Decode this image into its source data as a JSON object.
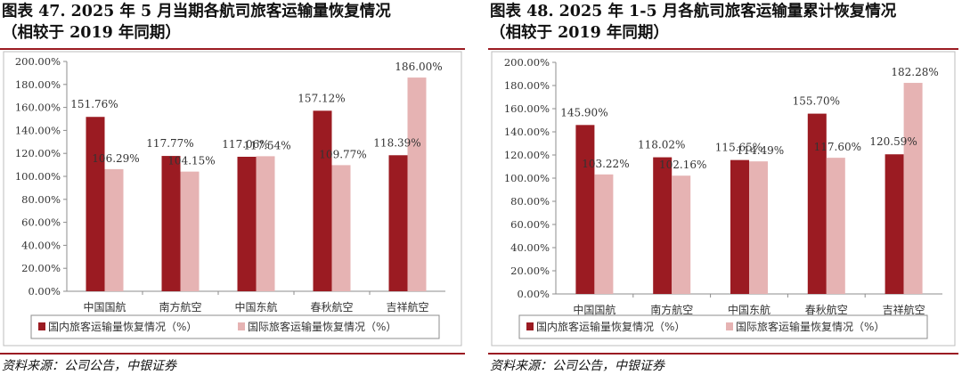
{
  "figures": [
    {
      "title_line1": "图表 47.   2025 年 5 月当期各航司旅客运输量恢复情况",
      "title_line2": "（相较于 2019 年同期）",
      "source": "资料来源：公司公告，中银证券"
    },
    {
      "title_line1": "图表 48.   2025 年 1-5 月各航司旅客运输量累计恢复情况",
      "title_line2": "（相较于 2019 年同期）",
      "source": "资料来源：公司公告，中银证券"
    }
  ],
  "chart_data": [
    {
      "type": "bar",
      "categories": [
        "中国国航",
        "南方航空",
        "中国东航",
        "春秋航空",
        "吉祥航空"
      ],
      "series": [
        {
          "name": "国内旅客运输量恢复情况（%）",
          "values": [
            151.76,
            117.77,
            117.06,
            157.12,
            118.39
          ],
          "labels": [
            "151.76%",
            "117.77%",
            "117.06%",
            "157.12%",
            "118.39%"
          ],
          "color": "#9b1b22"
        },
        {
          "name": "国际旅客运输量恢复情况（%）",
          "values": [
            106.29,
            104.15,
            117.54,
            109.77,
            186.0
          ],
          "labels": [
            "106.29%",
            "104.15%",
            "117.54%",
            "109.77%",
            "186.00%"
          ],
          "color": "#e6b3b3"
        }
      ],
      "yticks": [
        "0.00%",
        "20.00%",
        "40.00%",
        "60.00%",
        "80.00%",
        "100.00%",
        "120.00%",
        "140.00%",
        "160.00%",
        "180.00%",
        "200.00%"
      ],
      "ylim": [
        0,
        200
      ],
      "legend": "bottom",
      "grid": false
    },
    {
      "type": "bar",
      "categories": [
        "中国国航",
        "南方航空",
        "中国东航",
        "春秋航空",
        "吉祥航空"
      ],
      "series": [
        {
          "name": "国内旅客运输量恢复情况（%）",
          "values": [
            145.9,
            118.02,
            115.65,
            155.7,
            120.59
          ],
          "labels": [
            "145.90%",
            "118.02%",
            "115.65%",
            "155.70%",
            "120.59%"
          ],
          "color": "#9b1b22"
        },
        {
          "name": "国际旅客运输量恢复情况（%）",
          "values": [
            103.22,
            102.16,
            114.49,
            117.6,
            182.28
          ],
          "labels": [
            "103.22%",
            "102.16%",
            "114.49%",
            "117.60%",
            "182.28%"
          ],
          "color": "#e6b3b3"
        }
      ],
      "yticks": [
        "0.00%",
        "20.00%",
        "40.00%",
        "60.00%",
        "80.00%",
        "100.00%",
        "120.00%",
        "140.00%",
        "160.00%",
        "180.00%",
        "200.00%"
      ],
      "ylim": [
        0,
        200
      ],
      "legend": "bottom",
      "grid": false
    }
  ]
}
